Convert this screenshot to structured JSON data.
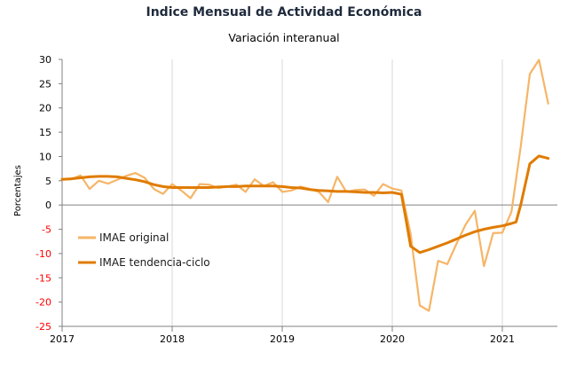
{
  "chart_data": {
    "type": "line",
    "title": "Indice Mensual de  Actividad Económica",
    "subtitle": "Variación interanual",
    "ylabel": "Porcentajes",
    "xlabel": "",
    "ylim": [
      -25,
      30
    ],
    "yticks": [
      30,
      25,
      20,
      15,
      10,
      5,
      0,
      -5,
      -10,
      -15,
      -20,
      -25
    ],
    "xlim": [
      2017.0,
      2021.5
    ],
    "xticks": [
      {
        "value": 2017,
        "label": "2017"
      },
      {
        "value": 2018,
        "label": "2018"
      },
      {
        "value": 2019,
        "label": "2019"
      },
      {
        "value": 2020,
        "label": "2020"
      },
      {
        "value": 2021,
        "label": "2021"
      }
    ],
    "grid": "vertical-at-years",
    "legend_position": "bottom-left",
    "negative_tick_color": "#ff0000",
    "series": [
      {
        "name": "IMAE original",
        "color": "#f6b567",
        "x": [
          2017.0,
          2017.083,
          2017.167,
          2017.25,
          2017.333,
          2017.417,
          2017.5,
          2017.583,
          2017.667,
          2017.75,
          2017.833,
          2017.917,
          2018.0,
          2018.083,
          2018.167,
          2018.25,
          2018.333,
          2018.417,
          2018.5,
          2018.583,
          2018.667,
          2018.75,
          2018.833,
          2018.917,
          2019.0,
          2019.083,
          2019.167,
          2019.25,
          2019.333,
          2019.417,
          2019.5,
          2019.583,
          2019.667,
          2019.75,
          2019.833,
          2019.917,
          2020.0,
          2020.083,
          2020.167,
          2020.25,
          2020.333,
          2020.417,
          2020.5,
          2020.583,
          2020.667,
          2020.75,
          2020.833,
          2020.917,
          2021.0,
          2021.083,
          2021.167,
          2021.25,
          2021.333,
          2021.417
        ],
        "y": [
          5.2,
          5.3,
          6.1,
          3.3,
          5.0,
          4.4,
          5.2,
          6.0,
          6.6,
          5.6,
          3.3,
          2.3,
          4.3,
          3.0,
          1.4,
          4.3,
          4.2,
          3.5,
          3.8,
          4.2,
          2.7,
          5.3,
          3.9,
          4.7,
          2.7,
          3.0,
          3.8,
          3.3,
          2.7,
          0.6,
          5.8,
          2.7,
          3.1,
          3.2,
          1.9,
          4.3,
          3.4,
          3.0,
          -6.0,
          -20.7,
          -21.8,
          -11.5,
          -12.2,
          -8.0,
          -4.0,
          -1.2,
          -12.6,
          -5.8,
          -5.7,
          -1.4,
          12.0,
          27.0,
          29.9,
          20.9
        ]
      },
      {
        "name": "IMAE tendencia-ciclo",
        "color": "#e07b00",
        "x": [
          2017.0,
          2017.083,
          2017.167,
          2017.25,
          2017.333,
          2017.417,
          2017.5,
          2017.583,
          2017.667,
          2017.75,
          2017.833,
          2017.917,
          2018.0,
          2018.083,
          2018.167,
          2018.25,
          2018.333,
          2018.417,
          2018.5,
          2018.583,
          2018.667,
          2018.75,
          2018.833,
          2018.917,
          2019.0,
          2019.083,
          2019.167,
          2019.25,
          2019.333,
          2019.417,
          2019.5,
          2019.583,
          2019.667,
          2019.75,
          2019.833,
          2019.917,
          2020.0,
          2020.083,
          2020.125,
          2020.167,
          2020.25,
          2020.333,
          2020.417,
          2020.5,
          2020.583,
          2020.667,
          2020.75,
          2020.833,
          2020.917,
          2021.0,
          2021.083,
          2021.125,
          2021.167,
          2021.25,
          2021.333,
          2021.417
        ],
        "y": [
          5.3,
          5.4,
          5.6,
          5.8,
          5.9,
          5.9,
          5.8,
          5.5,
          5.2,
          4.8,
          4.2,
          3.8,
          3.6,
          3.6,
          3.6,
          3.6,
          3.6,
          3.7,
          3.8,
          3.8,
          3.9,
          3.9,
          3.9,
          3.9,
          3.8,
          3.6,
          3.5,
          3.2,
          3.0,
          2.9,
          2.8,
          2.8,
          2.7,
          2.6,
          2.6,
          2.5,
          2.6,
          2.2,
          -3.0,
          -8.5,
          -9.8,
          -9.2,
          -8.5,
          -7.8,
          -7.0,
          -6.2,
          -5.5,
          -5.0,
          -4.6,
          -4.3,
          -3.8,
          -3.5,
          0.0,
          8.5,
          10.1,
          9.6
        ]
      }
    ]
  }
}
